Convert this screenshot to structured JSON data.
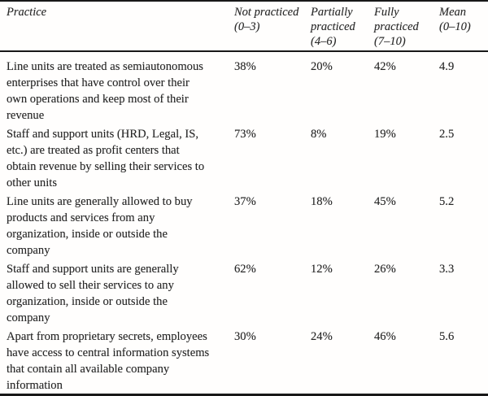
{
  "colors": {
    "background": "#fffefd",
    "text": "#262626",
    "rule": "#181818"
  },
  "table": {
    "headers": [
      {
        "label": "Practice"
      },
      {
        "label": "Not practiced\n(0–3)"
      },
      {
        "label": "Partially\npracticed\n(4–6)"
      },
      {
        "label": "Fully\npracticed\n(7–10)"
      },
      {
        "label": "Mean\n(0–10)"
      }
    ],
    "rows": [
      {
        "practice": "Line units are treated as semiautonomous\nenterprises that have control over their\nown operations and keep most of their\nrevenue",
        "not_practiced": "38%",
        "partially_practiced": "20%",
        "fully_practiced": "42%",
        "mean": "4.9"
      },
      {
        "practice": "Staff and support units (HRD, Legal, IS,\netc.) are treated as profit centers that\nobtain revenue by selling their services to\nother units",
        "not_practiced": "73%",
        "partially_practiced": "8%",
        "fully_practiced": "19%",
        "mean": "2.5"
      },
      {
        "practice": "Line units are generally allowed to buy\nproducts and services from any\norganization, inside or outside the\ncompany",
        "not_practiced": "37%",
        "partially_practiced": "18%",
        "fully_practiced": "45%",
        "mean": "5.2"
      },
      {
        "practice": "Staff and support units are generally\nallowed to sell their services to any\norganization, inside or outside the\ncompany",
        "not_practiced": "62%",
        "partially_practiced": "12%",
        "fully_practiced": "26%",
        "mean": "3.3"
      },
      {
        "practice": "Apart from proprietary secrets, employees\nhave access to central information systems\nthat contain all available company\ninformation",
        "not_practiced": "30%",
        "partially_practiced": "24%",
        "fully_practiced": "46%",
        "mean": "5.6"
      }
    ]
  }
}
